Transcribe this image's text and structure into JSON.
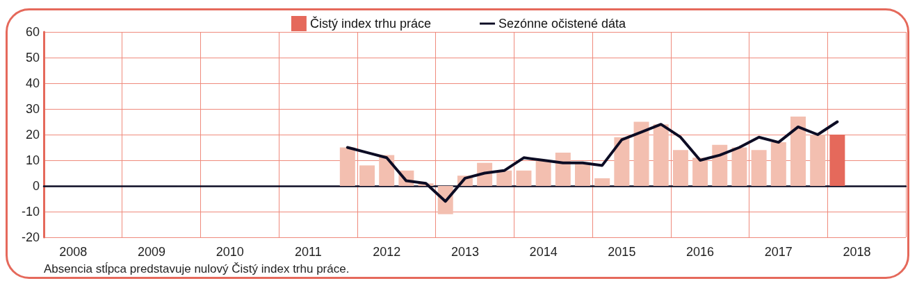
{
  "chart_data": {
    "type": "bar",
    "categories": [
      null,
      "2008",
      null,
      null,
      null,
      "2009",
      null,
      null,
      null,
      "2010",
      null,
      null,
      null,
      "2011",
      null,
      null,
      null,
      "2012",
      null,
      null,
      null,
      "2013",
      null,
      null,
      null,
      "2014",
      null,
      null,
      null,
      "2015",
      null,
      null,
      null,
      "2016",
      null,
      null,
      null,
      "2017",
      null,
      null,
      null,
      "2018",
      null,
      null
    ],
    "series": [
      {
        "name": "Čistý index trhu práce",
        "color": "#e5695b",
        "values": [
          null,
          null,
          null,
          null,
          null,
          null,
          null,
          null,
          null,
          null,
          null,
          null,
          null,
          null,
          null,
          15,
          8,
          12,
          6,
          1,
          -11,
          4,
          9,
          6,
          6,
          10,
          13,
          9,
          3,
          19,
          25,
          24,
          14,
          11,
          16,
          15,
          14,
          17,
          27,
          20,
          20,
          null,
          null,
          null
        ],
        "colors": [
          null,
          null,
          null,
          null,
          null,
          null,
          null,
          null,
          null,
          null,
          null,
          null,
          null,
          null,
          null,
          "#f3bfb0",
          "#f3bfb0",
          "#f3bfb0",
          "#f3bfb0",
          "#f3bfb0",
          "#f3bfb0",
          "#f3bfb0",
          "#f3bfb0",
          "#f3bfb0",
          "#f3bfb0",
          "#f3bfb0",
          "#f3bfb0",
          "#f3bfb0",
          "#f3bfb0",
          "#f3bfb0",
          "#f3bfb0",
          "#f3bfb0",
          "#f3bfb0",
          "#f3bfb0",
          "#f3bfb0",
          "#f3bfb0",
          "#f3bfb0",
          "#f3bfb0",
          "#f3bfb0",
          "#f3bfb0",
          "#e5695b",
          null,
          null,
          null
        ]
      },
      {
        "name": "Sezónne očistené dáta",
        "type": "line",
        "color": "#0c0c24",
        "values": [
          null,
          null,
          null,
          null,
          null,
          null,
          null,
          null,
          null,
          null,
          null,
          null,
          null,
          null,
          null,
          15,
          13,
          11,
          2,
          1,
          -6,
          3,
          5,
          6,
          11,
          10,
          9,
          9,
          8,
          18,
          21,
          24,
          19,
          10,
          12,
          15,
          19,
          17,
          23,
          20,
          25,
          null,
          null,
          null
        ]
      }
    ],
    "ylim": [
      -20,
      60
    ],
    "yticks": [
      -20,
      -10,
      0,
      10,
      20,
      30,
      40,
      50,
      60
    ],
    "grid": true,
    "legend": "top",
    "annotations": [
      "Absencia stĺpca predstavuje nulový Čistý index trhu práce."
    ]
  }
}
